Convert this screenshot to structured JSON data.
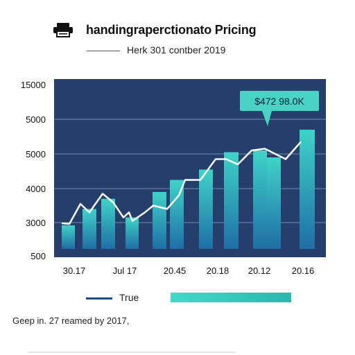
{
  "header": {
    "title": "handingraperctionato Pricing",
    "subtitle": "Herk 301 contber 2019"
  },
  "chart_data": {
    "type": "bar",
    "title": "handingraperctionato Pricing",
    "subtitle": "Herk 301 contber 2019",
    "y_tick_labels": [
      "15000",
      "5000",
      "5000",
      "4000",
      "3000",
      "500"
    ],
    "x_tick_labels": [
      "30.17",
      "Jul 17",
      "20.45",
      "20.18",
      "20.12",
      "20.16"
    ],
    "ylim": [
      500,
      15000
    ],
    "grid": true,
    "legend": "bottom",
    "series": [
      {
        "name": "True",
        "type": "line",
        "values": [
          2950,
          2900,
          3550,
          3300,
          3850,
          3600,
          3150,
          3300,
          3050,
          3300,
          3500,
          3400,
          3800,
          4250,
          4250,
          4850,
          4850,
          4700,
          5100,
          5150,
          4850,
          5350
        ]
      },
      {
        "type": "bar",
        "values": [
          2800,
          3400,
          3700,
          3150,
          3900,
          4250,
          4550,
          5050,
          5100,
          4900,
          5700
        ]
      }
    ],
    "annotations": [
      "$472 98.0K"
    ]
  },
  "legend": {
    "line_label": "True"
  },
  "footer": {
    "note": "Geep in. 27 reamed by 2017,"
  },
  "colors": {
    "plot_background": "#253e6c",
    "gridline": "#7b8cab",
    "line": "#ffffff",
    "bar_top": "#3fd3c8",
    "bar_bottom": "#1f6ea6",
    "annotation_bg": "#48d3c4",
    "legend_line": "#1a4d80"
  }
}
